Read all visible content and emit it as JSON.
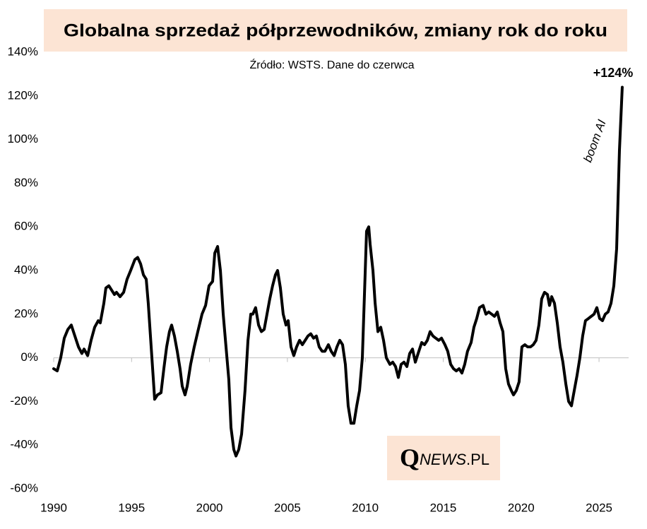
{
  "chart_data": {
    "type": "line",
    "title": "Globalna sprzedaż półprzewodników, zmiany rok do roku",
    "subtitle": "Źródło: WSTS. Dane do czerwca",
    "annotations": [
      "+124%",
      "boom AI"
    ],
    "logo": [
      "Q",
      "NEWS",
      ".PL"
    ],
    "color": "#000000",
    "x": [
      1990.0,
      1990.23,
      1990.45,
      1990.68,
      1990.91,
      1991.13,
      1991.36,
      1991.59,
      1991.81,
      1991.95,
      1992.18,
      1992.4,
      1992.63,
      1992.86,
      1992.99,
      1993.22,
      1993.35,
      1993.54,
      1993.72,
      1993.9,
      1994.03,
      1994.26,
      1994.49,
      1994.71,
      1994.94,
      1995.21,
      1995.39,
      1995.58,
      1995.76,
      1995.94,
      1996.07,
      1996.21,
      1996.35,
      1996.48,
      1996.66,
      1996.89,
      1997.07,
      1997.25,
      1997.43,
      1997.57,
      1997.75,
      1997.93,
      1998.11,
      1998.25,
      1998.43,
      1998.57,
      1998.79,
      1999.02,
      1999.25,
      1999.52,
      1999.75,
      1999.97,
      2000.2,
      2000.34,
      2000.52,
      2000.7,
      2000.88,
      2001.06,
      2001.24,
      2001.38,
      2001.56,
      2001.7,
      2001.88,
      2002.06,
      2002.28,
      2002.47,
      2002.65,
      2002.78,
      2002.96,
      2003.15,
      2003.33,
      2003.51,
      2003.69,
      2003.87,
      2004.05,
      2004.23,
      2004.37,
      2004.55,
      2004.73,
      2004.91,
      2005.05,
      2005.23,
      2005.41,
      2005.59,
      2005.78,
      2005.96,
      2006.14,
      2006.32,
      2006.5,
      2006.68,
      2006.86,
      2007.04,
      2007.23,
      2007.41,
      2007.63,
      2007.81,
      2008.0,
      2008.18,
      2008.36,
      2008.54,
      2008.72,
      2008.9,
      2009.08,
      2009.27,
      2009.45,
      2009.63,
      2009.81,
      2009.95,
      2010.08,
      2010.22,
      2010.31,
      2010.49,
      2010.63,
      2010.81,
      2010.99,
      2011.17,
      2011.35,
      2011.58,
      2011.76,
      2011.94,
      2012.12,
      2012.3,
      2012.48,
      2012.67,
      2012.85,
      2013.03,
      2013.21,
      2013.39,
      2013.62,
      2013.8,
      2013.98,
      2014.16,
      2014.34,
      2014.52,
      2014.71,
      2014.89,
      2015.11,
      2015.29,
      2015.48,
      2015.66,
      2015.84,
      2016.02,
      2016.2,
      2016.38,
      2016.56,
      2016.79,
      2016.97,
      2017.15,
      2017.33,
      2017.56,
      2017.74,
      2017.92,
      2018.11,
      2018.29,
      2018.47,
      2018.65,
      2018.83,
      2019.01,
      2019.19,
      2019.37,
      2019.51,
      2019.69,
      2019.87,
      2020.05,
      2020.24,
      2020.42,
      2020.6,
      2020.78,
      2020.96,
      2021.14,
      2021.32,
      2021.5,
      2021.69,
      2021.82,
      2021.96,
      2022.14,
      2022.32,
      2022.5,
      2022.68,
      2022.87,
      2023.05,
      2023.23,
      2023.41,
      2023.59,
      2023.77,
      2023.95,
      2024.13,
      2024.32,
      2024.5,
      2024.68,
      2024.86,
      2025.04,
      2025.22,
      2025.4,
      2025.58,
      2025.77,
      2025.95,
      2026.13,
      2026.31,
      2026.49
    ],
    "values": [
      -5,
      -6,
      0,
      9,
      13,
      15,
      10,
      5,
      2,
      4,
      1,
      8,
      14,
      17,
      16,
      25,
      32,
      33,
      31,
      29,
      30,
      28,
      30,
      36,
      40,
      45,
      46,
      43,
      38,
      36,
      25,
      10,
      -5,
      -19,
      -17,
      -16,
      -5,
      5,
      12,
      15,
      10,
      3,
      -5,
      -13,
      -17,
      -13,
      -3,
      5,
      12,
      20,
      24,
      33,
      35,
      48,
      51,
      40,
      20,
      5,
      -10,
      -32,
      -42,
      -45,
      -42,
      -35,
      -15,
      8,
      20,
      20,
      23,
      15,
      12,
      13,
      20,
      27,
      33,
      38,
      40,
      32,
      20,
      15,
      17,
      5,
      1,
      5,
      8,
      6,
      8,
      10,
      11,
      9,
      10,
      5,
      3,
      3,
      6,
      3,
      1,
      5,
      8,
      6,
      -3,
      -22,
      -30,
      -30,
      -22,
      -15,
      0,
      30,
      58,
      60,
      52,
      40,
      25,
      12,
      14,
      8,
      0,
      -3,
      -2,
      -4,
      -9,
      -3,
      -2,
      -4,
      2,
      4,
      -2,
      2,
      7,
      6,
      8,
      12,
      10,
      9,
      8,
      9,
      6,
      3,
      -3,
      -5,
      -6,
      -5,
      -7,
      -3,
      3,
      7,
      14,
      18,
      23,
      24,
      20,
      21,
      20,
      19,
      21,
      16,
      12,
      -5,
      -12,
      -15,
      -17,
      -15,
      -11,
      5,
      6,
      5,
      5,
      6,
      8,
      15,
      27,
      30,
      29,
      24,
      28,
      25,
      16,
      5,
      -2,
      -12,
      -20,
      -22,
      -15,
      -8,
      0,
      10,
      17,
      18,
      19,
      20,
      23,
      18,
      17,
      20,
      21,
      25,
      33,
      50,
      95,
      124
    ],
    "xlim": [
      1990,
      2026.9
    ],
    "ylim": [
      -60,
      140
    ],
    "xticks": [
      1990,
      1995,
      2000,
      2005,
      2010,
      2015,
      2020,
      2025
    ],
    "yticks": [
      {
        "value": 140,
        "label": "140%"
      },
      {
        "value": 120,
        "label": "120%"
      },
      {
        "value": 100,
        "label": "100%"
      },
      {
        "value": 80,
        "label": "80%"
      },
      {
        "value": 60,
        "label": "60%"
      },
      {
        "value": 40,
        "label": "40%"
      },
      {
        "value": 20,
        "label": "20%"
      },
      {
        "value": 0,
        "label": "0%"
      },
      {
        "value": -20,
        "label": "-20%"
      },
      {
        "value": -40,
        "label": "-40%"
      },
      {
        "value": -60,
        "label": "-60%"
      }
    ],
    "grid": false
  }
}
